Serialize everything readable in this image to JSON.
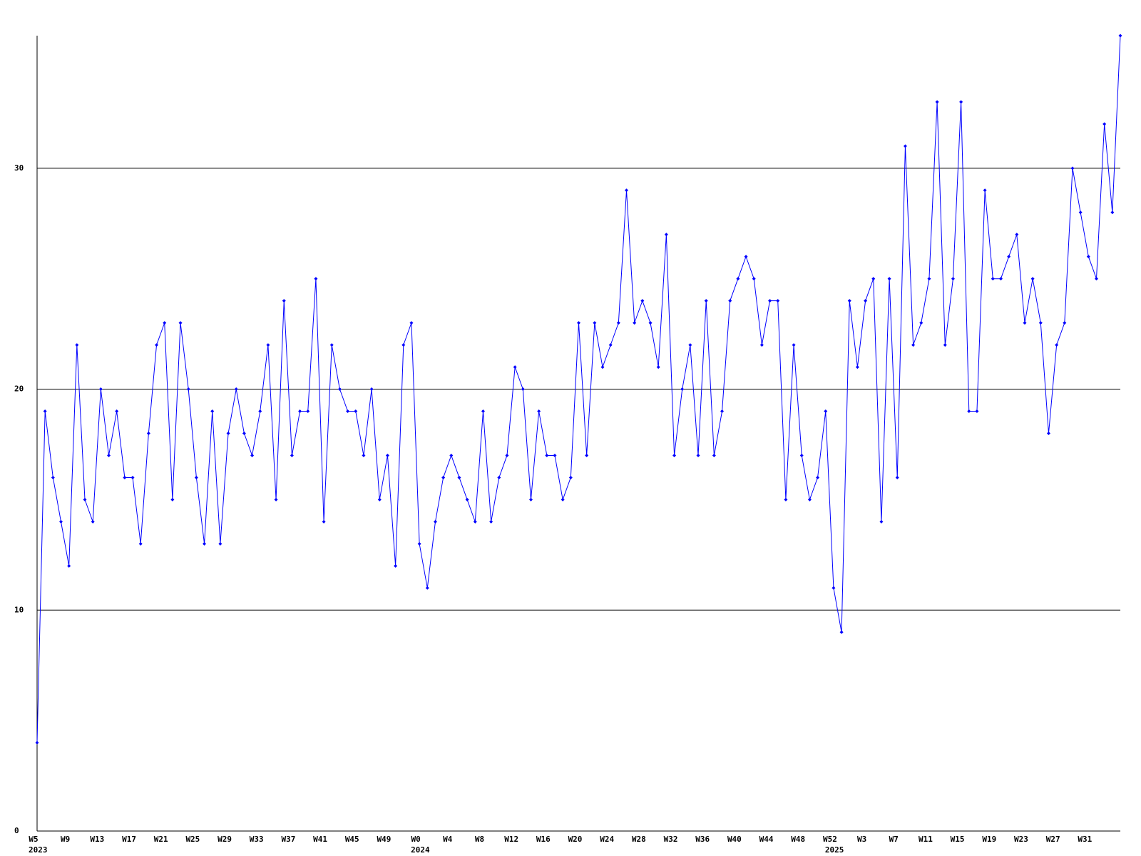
{
  "chart_data": {
    "type": "line",
    "color": "#0000ff",
    "grid": true,
    "ylim": [
      0,
      36
    ],
    "yticks": [
      0,
      10,
      20,
      30
    ],
    "categories": [
      "W5",
      null,
      null,
      null,
      "W9",
      null,
      null,
      null,
      "W13",
      null,
      null,
      null,
      "W17",
      null,
      null,
      null,
      "W21",
      null,
      null,
      null,
      "W25",
      null,
      null,
      null,
      "W29",
      null,
      null,
      null,
      "W33",
      null,
      null,
      null,
      "W37",
      null,
      null,
      null,
      "W41",
      null,
      null,
      null,
      "W45",
      null,
      null,
      null,
      "W49",
      null,
      null,
      null,
      "W0",
      null,
      null,
      null,
      "W4",
      null,
      null,
      null,
      "W8",
      null,
      null,
      null,
      "W12",
      null,
      null,
      null,
      "W16",
      null,
      null,
      null,
      "W20",
      null,
      null,
      null,
      "W24",
      null,
      null,
      null,
      "W28",
      null,
      null,
      null,
      "W32",
      null,
      null,
      null,
      "W36",
      null,
      null,
      null,
      "W40",
      null,
      null,
      null,
      "W44",
      null,
      null,
      null,
      "W48",
      null,
      null,
      null,
      "W52",
      null,
      null,
      null,
      "W3",
      null,
      null,
      null,
      "W7",
      null,
      null,
      null,
      "W11",
      null,
      null,
      null,
      "W15",
      null,
      null,
      null,
      "W19",
      null,
      null,
      null,
      "W23",
      null,
      null,
      null,
      "W27",
      null,
      null,
      null,
      "W31",
      null,
      null,
      null,
      null
    ],
    "category_years": [
      "2023",
      null,
      null,
      null,
      null,
      null,
      null,
      null,
      null,
      null,
      null,
      null,
      null,
      null,
      null,
      null,
      null,
      null,
      null,
      null,
      null,
      null,
      null,
      null,
      null,
      null,
      null,
      null,
      null,
      null,
      null,
      null,
      null,
      null,
      null,
      null,
      null,
      null,
      null,
      null,
      null,
      null,
      null,
      null,
      null,
      null,
      null,
      null,
      "2024",
      null,
      null,
      null,
      null,
      null,
      null,
      null,
      null,
      null,
      null,
      null,
      null,
      null,
      null,
      null,
      null,
      null,
      null,
      null,
      null,
      null,
      null,
      null,
      null,
      null,
      null,
      null,
      null,
      null,
      null,
      null,
      null,
      null,
      null,
      null,
      null,
      null,
      null,
      null,
      null,
      null,
      null,
      null,
      null,
      null,
      null,
      null,
      null,
      null,
      null,
      null,
      "2025",
      null,
      null,
      null,
      null,
      null,
      null,
      null,
      null,
      null,
      null,
      null,
      null,
      null,
      null,
      null,
      null,
      null,
      null,
      null,
      null,
      null,
      null,
      null,
      null,
      null,
      null,
      null,
      null,
      null,
      null,
      null,
      null,
      null,
      null,
      null,
      null
    ],
    "values": [
      4,
      19,
      16,
      14,
      12,
      22,
      15,
      14,
      20,
      17,
      19,
      16,
      16,
      13,
      18,
      22,
      23,
      15,
      23,
      20,
      16,
      13,
      19,
      13,
      18,
      20,
      18,
      17,
      19,
      22,
      15,
      24,
      17,
      19,
      19,
      25,
      14,
      22,
      20,
      19,
      19,
      17,
      20,
      15,
      17,
      12,
      22,
      23,
      13,
      11,
      14,
      16,
      17,
      16,
      15,
      14,
      19,
      14,
      16,
      17,
      21,
      20,
      15,
      19,
      17,
      17,
      15,
      16,
      23,
      17,
      23,
      21,
      22,
      23,
      29,
      23,
      24,
      23,
      21,
      27,
      17,
      20,
      22,
      17,
      24,
      17,
      19,
      24,
      25,
      26,
      25,
      22,
      24,
      24,
      15,
      22,
      17,
      15,
      16,
      19,
      11,
      9,
      24,
      21,
      24,
      25,
      14,
      25,
      16,
      31,
      22,
      23,
      25,
      33,
      22,
      25,
      33,
      19,
      19,
      29,
      25,
      25,
      26,
      27,
      23,
      25,
      23,
      18,
      22,
      23,
      30,
      28,
      26,
      25,
      32,
      28,
      36
    ]
  }
}
